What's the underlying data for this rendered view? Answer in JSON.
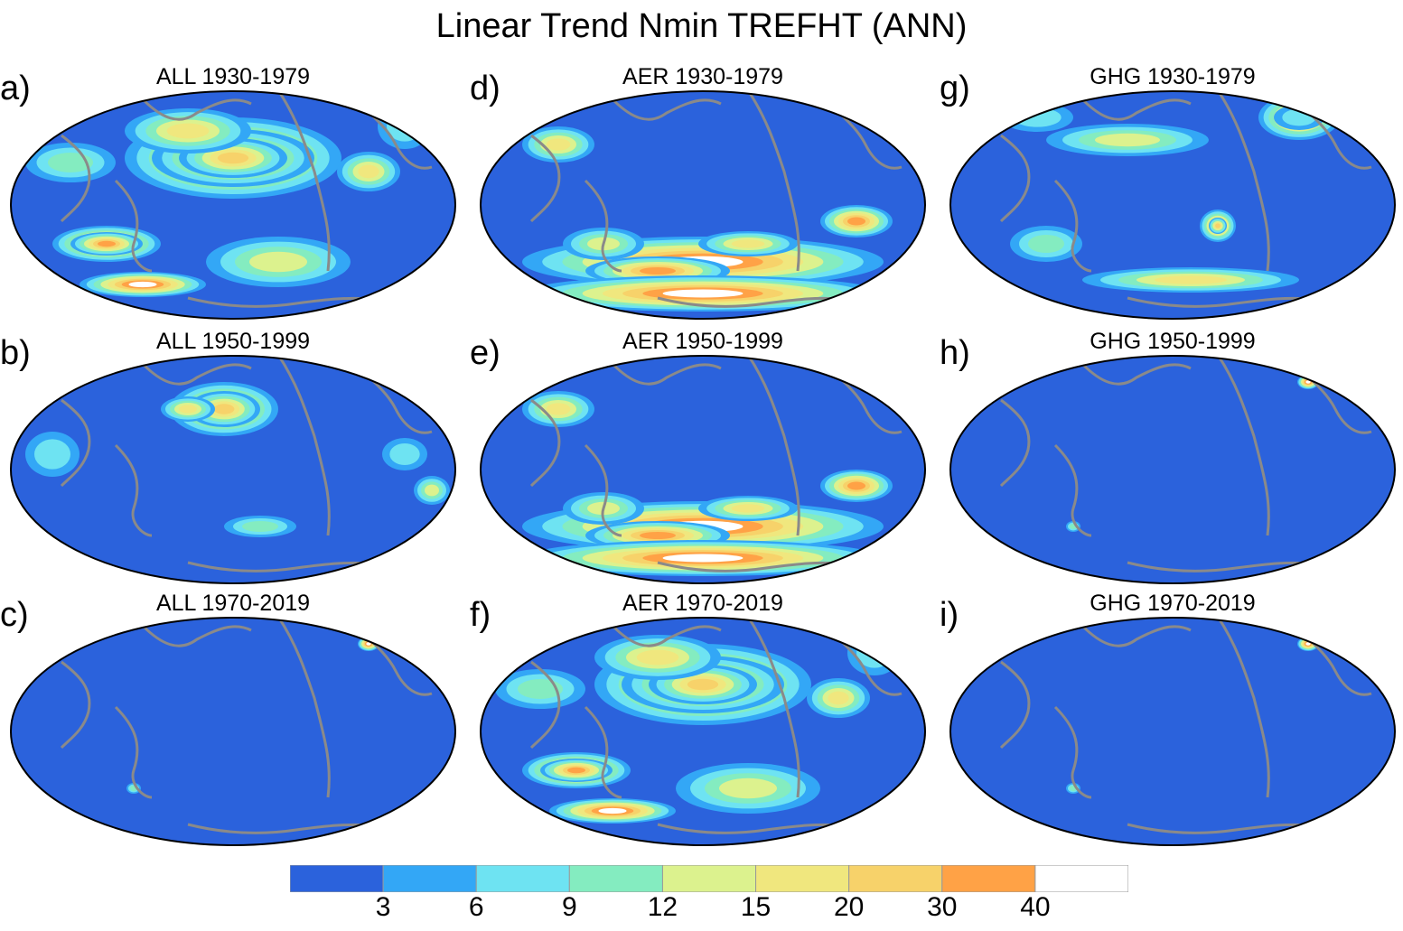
{
  "title": "Linear Trend Nmin TREFHT (ANN)",
  "colors": {
    "ocean_base": "#2b62dc",
    "coast": "#8a8a8a",
    "outline": "#000000"
  },
  "panels": [
    {
      "letter": "a)",
      "title": "ALL 1930-1979",
      "intensity": "high"
    },
    {
      "letter": "b)",
      "title": "ALL 1950-1999",
      "intensity": "medium"
    },
    {
      "letter": "c)",
      "title": "ALL 1970-2019",
      "intensity": "low"
    },
    {
      "letter": "d)",
      "title": "AER 1930-1979",
      "intensity": "medium-south"
    },
    {
      "letter": "e)",
      "title": "AER 1950-1999",
      "intensity": "medium-south"
    },
    {
      "letter": "f)",
      "title": "AER 1970-2019",
      "intensity": "high"
    },
    {
      "letter": "g)",
      "title": "GHG 1930-1979",
      "intensity": "medium-north"
    },
    {
      "letter": "h)",
      "title": "GHG 1950-1999",
      "intensity": "low"
    },
    {
      "letter": "i)",
      "title": "GHG 1970-2019",
      "intensity": "low"
    }
  ],
  "colorbar": {
    "labels": [
      "3",
      "6",
      "9",
      "12",
      "15",
      "20",
      "30",
      "40"
    ],
    "colors": [
      "#2b62dc",
      "#33a7f6",
      "#6ee3f2",
      "#84ecc0",
      "#dcf28e",
      "#f0e77e",
      "#f7d26a",
      "#ffa246",
      "#ffffff"
    ]
  }
}
